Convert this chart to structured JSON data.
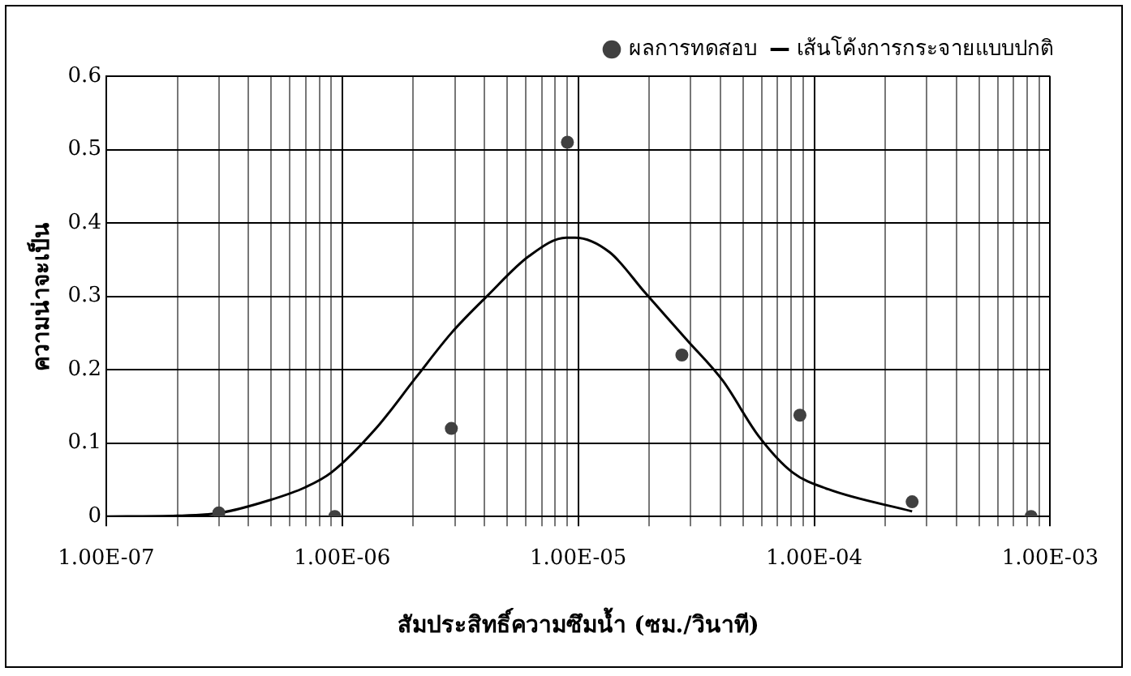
{
  "chart_data": {
    "type": "scatter",
    "xlabel": "สัมประสิทธิ์ความซึมน้ำ (ซม./วินาที)",
    "ylabel": "ความน่าจะเป็น",
    "log": "x",
    "grid": true,
    "legend": "top right",
    "xlim": [
      1e-07,
      0.001
    ],
    "ylim": [
      0,
      0.6
    ],
    "yticks": [
      0,
      0.1,
      0.2,
      0.3,
      0.4,
      0.5,
      0.6
    ],
    "xticks": [
      {
        "value": 1e-07,
        "label": "1.00E-07"
      },
      {
        "value": 2e-07,
        "label": null
      },
      {
        "value": 3e-07,
        "label": null
      },
      {
        "value": 4e-07,
        "label": null
      },
      {
        "value": 5e-07,
        "label": null
      },
      {
        "value": 6e-07,
        "label": null
      },
      {
        "value": 7e-07,
        "label": null
      },
      {
        "value": 8e-07,
        "label": null
      },
      {
        "value": 9e-07,
        "label": null
      },
      {
        "value": 1e-06,
        "label": "1.00E-06"
      },
      {
        "value": 2e-06,
        "label": null
      },
      {
        "value": 3e-06,
        "label": null
      },
      {
        "value": 4e-06,
        "label": null
      },
      {
        "value": 5e-06,
        "label": null
      },
      {
        "value": 6e-06,
        "label": null
      },
      {
        "value": 7e-06,
        "label": null
      },
      {
        "value": 8e-06,
        "label": null
      },
      {
        "value": 9e-06,
        "label": null
      },
      {
        "value": 1e-05,
        "label": "1.00E-05"
      },
      {
        "value": 2e-05,
        "label": null
      },
      {
        "value": 3e-05,
        "label": null
      },
      {
        "value": 4e-05,
        "label": null
      },
      {
        "value": 5e-05,
        "label": null
      },
      {
        "value": 6e-05,
        "label": null
      },
      {
        "value": 7e-05,
        "label": null
      },
      {
        "value": 8e-05,
        "label": null
      },
      {
        "value": 9e-05,
        "label": null
      },
      {
        "value": 0.0001,
        "label": "1.00E-04"
      },
      {
        "value": 0.0002,
        "label": null
      },
      {
        "value": 0.0003,
        "label": null
      },
      {
        "value": 0.0004,
        "label": null
      },
      {
        "value": 0.0005,
        "label": null
      },
      {
        "value": 0.0006,
        "label": null
      },
      {
        "value": 0.0007,
        "label": null
      },
      {
        "value": 0.0008,
        "label": null
      },
      {
        "value": 0.0009,
        "label": null
      },
      {
        "value": 0.001,
        "label": "1.00E-03"
      }
    ],
    "series": [
      {
        "name": "ผลการทดสอบ",
        "marker": "circle",
        "color": "#404040",
        "x": [
          3e-07,
          9.3e-07,
          2.9e-06,
          9e-06,
          2.75e-05,
          8.7e-05,
          0.00026,
          0.00083
        ],
        "values": [
          0.005,
          0,
          0.12,
          0.51,
          0.22,
          0.138,
          0.02,
          0
        ]
      },
      {
        "name": "เส้นโค้งการกระจายแบบปกติ",
        "type": "line",
        "marker": "none",
        "line_style": "solid",
        "color": "#000000",
        "x": [
          1e-07,
          2e-07,
          3.05e-07,
          4.9e-07,
          7e-07,
          9e-07,
          1.39e-06,
          2.06e-06,
          2.9e-06,
          4.1e-06,
          6.2e-06,
          8.9e-06,
          9.7e-06,
          1.36e-05,
          1.92e-05,
          2.9e-05,
          4.1e-05,
          5.8e-05,
          8.1e-05,
          0.000115,
          0.00026
        ],
        "values": [
          0,
          0.001,
          0.005,
          0.022,
          0.04,
          0.06,
          0.12,
          0.19,
          0.25,
          0.3,
          0.355,
          0.38,
          0.38,
          0.36,
          0.305,
          0.24,
          0.185,
          0.11,
          0.06,
          0.037,
          0.007
        ]
      }
    ]
  }
}
